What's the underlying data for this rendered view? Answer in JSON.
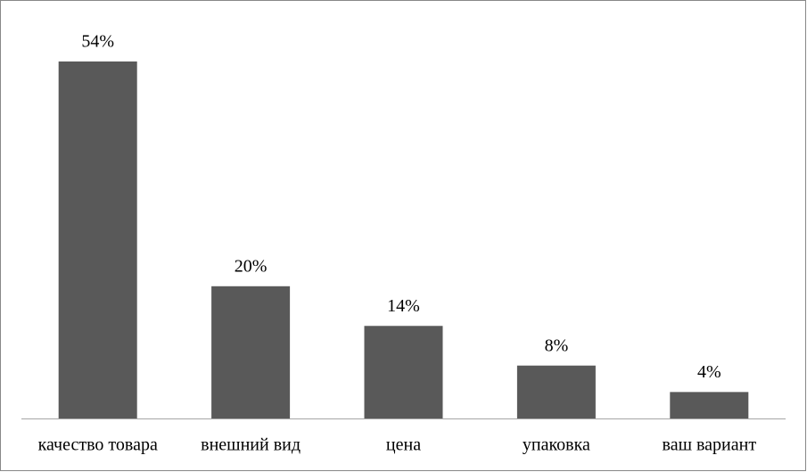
{
  "chart_data": {
    "type": "bar",
    "categories": [
      "качество товара",
      "внешний вид",
      "цена",
      "упаковка",
      "ваш вариант"
    ],
    "values": [
      54,
      20,
      14,
      8,
      4
    ],
    "value_labels": [
      "54%",
      "20%",
      "14%",
      "8%",
      "4%"
    ],
    "color": "#595959"
  }
}
